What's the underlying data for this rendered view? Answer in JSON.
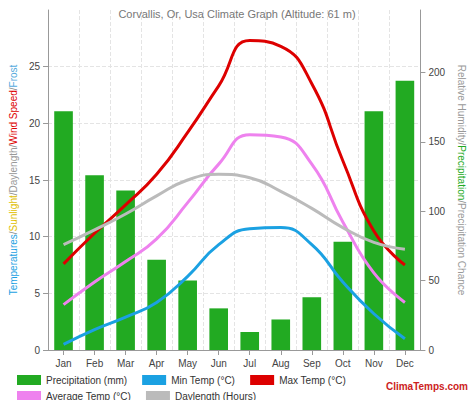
{
  "chart_data": {
    "type": "bar",
    "title": "Corvallis, Or, Usa Climate Graph (Altitude: 61 m)",
    "y_label": "Temperatures/Sunlight/Daylength/Wind Speed/Frost",
    "y2_label": "Relative Humidity/Precipitation/Precipitation Chance",
    "watermark": "ClimaTemps.com",
    "categories": [
      "Jan",
      "Feb",
      "Mar",
      "Apr",
      "May",
      "Jun",
      "Jul",
      "Aug",
      "Sep",
      "Oct",
      "Nov",
      "Dec"
    ],
    "series": [
      {
        "name": "Precipitation (mm)",
        "type": "bar",
        "axis": "y2",
        "color": "#22aa22",
        "values": [
          172,
          126,
          115,
          65,
          50,
          30,
          13,
          22,
          38,
          78,
          172,
          194
        ]
      },
      {
        "name": "Min Temp (°C)",
        "type": "line",
        "color": "#1ba1e2",
        "values": [
          0.5,
          1.8,
          2.9,
          4.2,
          6.5,
          9.3,
          10.7,
          10.8,
          9.3,
          6.0,
          3.2,
          1.0
        ]
      },
      {
        "name": "Max Temp (°C)",
        "type": "line",
        "color": "#dd0000",
        "values": [
          7.6,
          10.3,
          12.8,
          15.5,
          19.2,
          23.3,
          27.3,
          26.8,
          23.5,
          16.7,
          10.5,
          7.5
        ]
      },
      {
        "name": "Average Temp (°C)",
        "type": "line",
        "color": "#ee82ee",
        "values": [
          4.0,
          6.0,
          7.8,
          9.8,
          13.0,
          16.4,
          19.0,
          18.8,
          16.4,
          11.3,
          6.8,
          4.2
        ]
      },
      {
        "name": "Daylength (Hours)",
        "type": "line",
        "color": "#bbbbbb",
        "values": [
          9.3,
          10.6,
          12.0,
          13.6,
          15.0,
          15.5,
          15.2,
          14.0,
          12.5,
          10.8,
          9.5,
          8.9
        ]
      }
    ],
    "ylim": [
      0,
      30
    ],
    "yticks": [
      0,
      5,
      10,
      15,
      20,
      25
    ],
    "y2lim": [
      0,
      245
    ],
    "y2ticks": [
      0,
      50,
      100,
      150,
      200
    ],
    "grid": true,
    "legend": "bottom"
  }
}
